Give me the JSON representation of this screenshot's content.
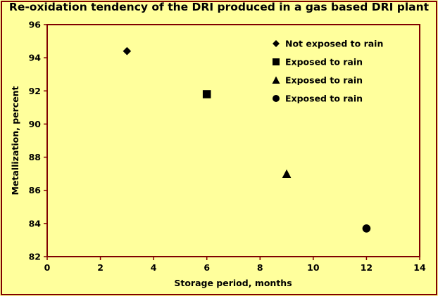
{
  "chart_data": {
    "type": "scatter",
    "title": "Re-oxidation tendency of the DRI produced in a gas based DRI plant",
    "xlabel": "Storage period, months",
    "ylabel": "Metallization, percent",
    "xlim": [
      0,
      14
    ],
    "ylim": [
      82,
      96
    ],
    "xticks": [
      0,
      2,
      4,
      6,
      8,
      10,
      12,
      14
    ],
    "yticks": [
      82,
      84,
      86,
      88,
      90,
      92,
      94,
      96
    ],
    "grid": false,
    "legend_position": "top-right",
    "series": [
      {
        "name": "Not exposed to rain",
        "marker": "diamond",
        "x": [
          3
        ],
        "y": [
          94.4
        ]
      },
      {
        "name": "Exposed to rain",
        "marker": "square",
        "x": [
          6
        ],
        "y": [
          91.8
        ]
      },
      {
        "name": "Exposed to rain",
        "marker": "triangle",
        "x": [
          9
        ],
        "y": [
          87.0
        ]
      },
      {
        "name": "Exposed to rain",
        "marker": "circle",
        "x": [
          12
        ],
        "y": [
          83.7
        ]
      }
    ],
    "colors": {
      "background": "#ffff9c",
      "plot_background": "#ffff9c",
      "frame": "#800000",
      "marker": "#000000"
    }
  }
}
